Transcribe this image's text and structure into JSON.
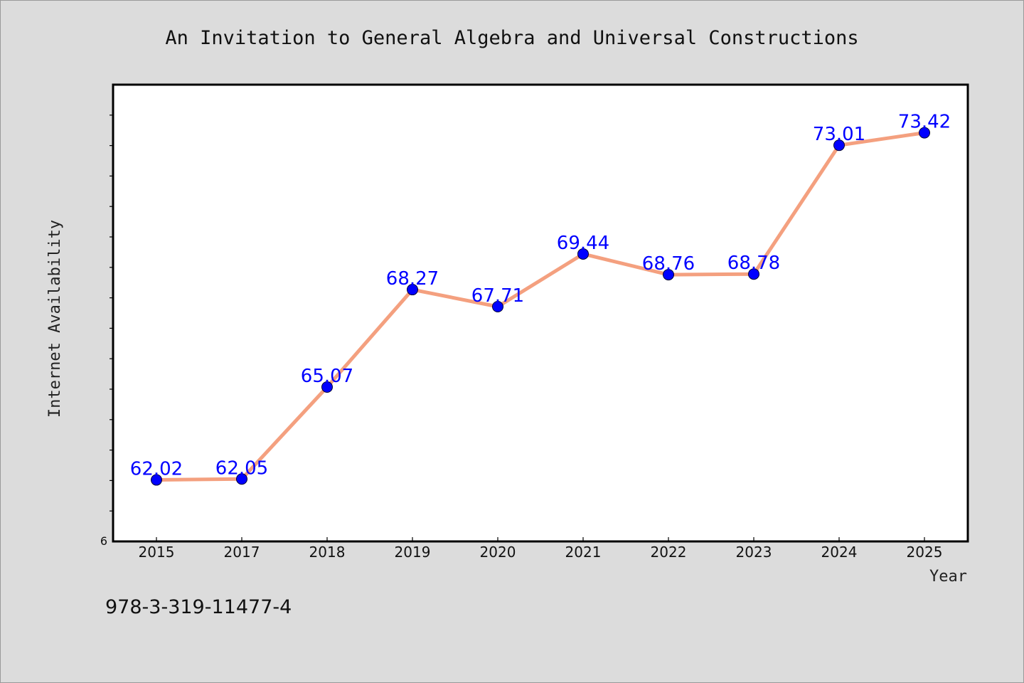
{
  "chart_data": {
    "type": "line",
    "title": "An Invitation to General Algebra and Universal Constructions",
    "xlabel": "Year",
    "ylabel": "Internet Availability",
    "categories": [
      "2015",
      "2017",
      "2018",
      "2019",
      "2020",
      "2021",
      "2022",
      "2023",
      "2024",
      "2025"
    ],
    "series": [
      {
        "values": [
          62.02,
          62.05,
          65.07,
          68.27,
          67.71,
          69.44,
          68.76,
          68.78,
          73.01,
          73.42
        ],
        "data_labels": [
          "62.02",
          "62.05",
          "65.07",
          "68.27",
          "67.71",
          "69.44",
          "68.76",
          "68.78",
          "73.01",
          "73.42"
        ],
        "line_color": "#f4a07f",
        "marker_color": "#0000ff"
      }
    ],
    "ylim": [
      60,
      75
    ],
    "y_tick_labels": [
      "6"
    ],
    "grid": false,
    "legend": "none"
  },
  "footer": {
    "isbn": "978-3-319-11477-4"
  }
}
